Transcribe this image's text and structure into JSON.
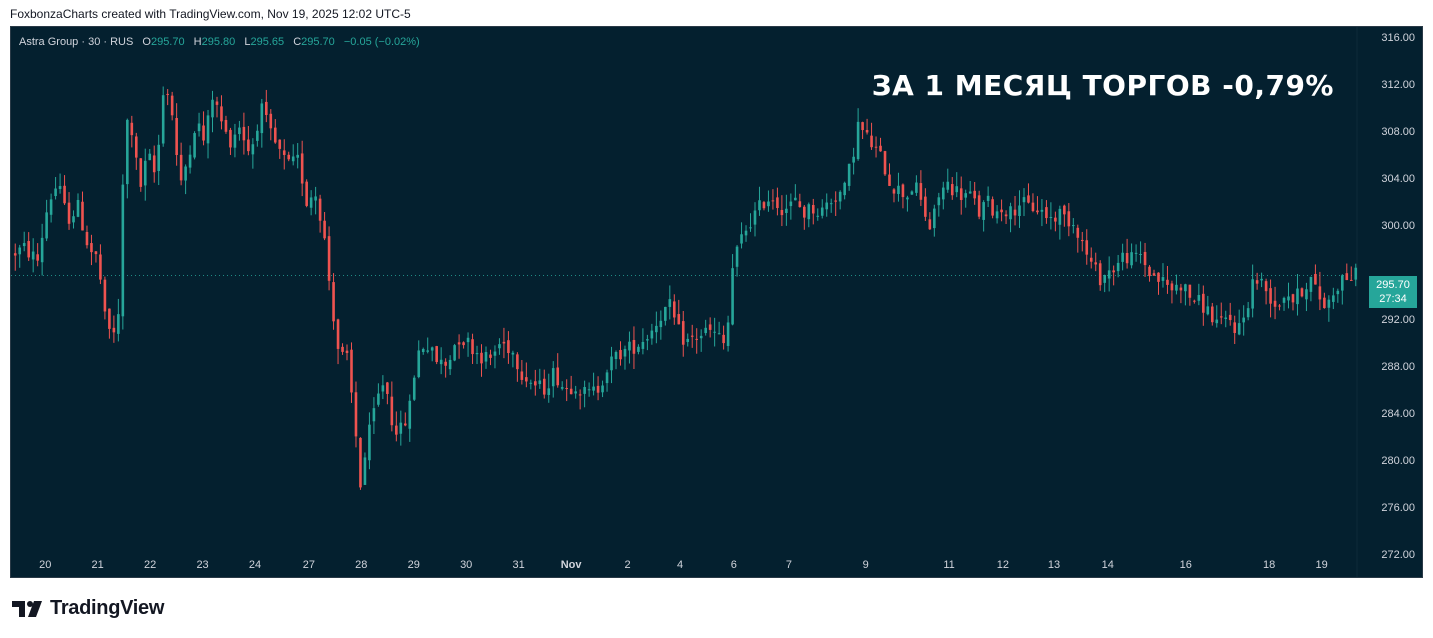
{
  "header": {
    "caption": "FoxbonzaCharts created with TradingView.com, Nov 19, 2025 12:02 UTC-5"
  },
  "legend": {
    "symbol": "Astra Group · 30 · RUS",
    "open_label": "O",
    "open": "295.70",
    "high_label": "H",
    "high": "295.80",
    "low_label": "L",
    "low": "295.65",
    "close_label": "C",
    "close": "295.70",
    "change": "−0.05 (−0.02%)"
  },
  "headline": "ЗА 1 МЕСЯЦ ТОРГОВ -0,79%",
  "price_tag": {
    "price": "295.70",
    "countdown": "27:34"
  },
  "footer": {
    "brand": "TradingView"
  },
  "colors": {
    "background": "#04202f",
    "up": "#26a69a",
    "down": "#ef5350",
    "text": "#d1d4dc"
  },
  "chart_data": {
    "type": "candlestick",
    "title": "",
    "y_ticks": [
      "316.00",
      "312.00",
      "308.00",
      "304.00",
      "300.00",
      "292.00",
      "288.00",
      "284.00",
      "280.00",
      "276.00",
      "272.00"
    ],
    "ylim": [
      272,
      316.5
    ],
    "last_price": 295.7,
    "x_ticks": [
      {
        "label": "20",
        "pos": 0.018
      },
      {
        "label": "21",
        "pos": 0.057
      },
      {
        "label": "22",
        "pos": 0.096
      },
      {
        "label": "23",
        "pos": 0.135
      },
      {
        "label": "24",
        "pos": 0.174
      },
      {
        "label": "27",
        "pos": 0.214
      },
      {
        "label": "28",
        "pos": 0.253
      },
      {
        "label": "29",
        "pos": 0.292
      },
      {
        "label": "30",
        "pos": 0.331
      },
      {
        "label": "31",
        "pos": 0.37
      },
      {
        "label": "Nov",
        "pos": 0.409
      },
      {
        "label": "2",
        "pos": 0.451
      },
      {
        "label": "4",
        "pos": 0.49
      },
      {
        "label": "6",
        "pos": 0.53
      },
      {
        "label": "7",
        "pos": 0.571
      },
      {
        "label": "9",
        "pos": 0.628
      },
      {
        "label": "11",
        "pos": 0.69
      },
      {
        "label": "12",
        "pos": 0.73
      },
      {
        "label": "13",
        "pos": 0.768
      },
      {
        "label": "14",
        "pos": 0.808
      },
      {
        "label": "16",
        "pos": 0.866
      },
      {
        "label": "18",
        "pos": 0.928
      },
      {
        "label": "19",
        "pos": 0.967
      }
    ],
    "price_path": [
      [
        0.0,
        297.5
      ],
      [
        0.01,
        298.0
      ],
      [
        0.02,
        297.0
      ],
      [
        0.028,
        302.0
      ],
      [
        0.035,
        303.5
      ],
      [
        0.042,
        300.5
      ],
      [
        0.05,
        301.5
      ],
      [
        0.058,
        298.0
      ],
      [
        0.065,
        297.0
      ],
      [
        0.07,
        292.0
      ],
      [
        0.075,
        290.5
      ],
      [
        0.08,
        292.0
      ],
      [
        0.085,
        309.0
      ],
      [
        0.09,
        308.0
      ],
      [
        0.096,
        303.0
      ],
      [
        0.102,
        306.0
      ],
      [
        0.108,
        304.0
      ],
      [
        0.114,
        312.5
      ],
      [
        0.12,
        309.5
      ],
      [
        0.126,
        303.0
      ],
      [
        0.132,
        306.0
      ],
      [
        0.138,
        309.0
      ],
      [
        0.144,
        307.0
      ],
      [
        0.15,
        311.0
      ],
      [
        0.156,
        309.0
      ],
      [
        0.162,
        307.0
      ],
      [
        0.17,
        308.5
      ],
      [
        0.178,
        306.0
      ],
      [
        0.186,
        310.0
      ],
      [
        0.192,
        308.0
      ],
      [
        0.198,
        306.5
      ],
      [
        0.206,
        305.0
      ],
      [
        0.214,
        305.5
      ],
      [
        0.22,
        302.0
      ],
      [
        0.226,
        303.0
      ],
      [
        0.232,
        300.0
      ],
      [
        0.238,
        294.0
      ],
      [
        0.244,
        289.0
      ],
      [
        0.25,
        288.5
      ],
      [
        0.255,
        284.0
      ],
      [
        0.26,
        278.0
      ],
      [
        0.266,
        282.0
      ],
      [
        0.272,
        285.0
      ],
      [
        0.278,
        287.0
      ],
      [
        0.284,
        283.0
      ],
      [
        0.29,
        282.5
      ],
      [
        0.296,
        284.0
      ],
      [
        0.302,
        289.0
      ],
      [
        0.308,
        290.0
      ],
      [
        0.316,
        288.5
      ],
      [
        0.324,
        288.0
      ],
      [
        0.332,
        290.5
      ],
      [
        0.34,
        290.0
      ],
      [
        0.348,
        289.0
      ],
      [
        0.356,
        288.5
      ],
      [
        0.364,
        290.0
      ],
      [
        0.372,
        289.5
      ],
      [
        0.38,
        287.5
      ],
      [
        0.388,
        286.5
      ],
      [
        0.396,
        286.0
      ],
      [
        0.404,
        287.5
      ],
      [
        0.412,
        286.0
      ],
      [
        0.42,
        286.5
      ],
      [
        0.428,
        285.5
      ],
      [
        0.436,
        286.0
      ],
      [
        0.444,
        288.0
      ],
      [
        0.452,
        289.0
      ],
      [
        0.46,
        289.5
      ],
      [
        0.468,
        290.0
      ],
      [
        0.476,
        291.0
      ],
      [
        0.484,
        292.5
      ],
      [
        0.49,
        293.0
      ],
      [
        0.496,
        291.0
      ],
      [
        0.502,
        290.0
      ],
      [
        0.51,
        290.5
      ],
      [
        0.518,
        291.0
      ],
      [
        0.526,
        290.5
      ],
      [
        0.532,
        289.5
      ],
      [
        0.536,
        296.0
      ],
      [
        0.542,
        298.5
      ],
      [
        0.548,
        300.0
      ],
      [
        0.554,
        301.0
      ],
      [
        0.56,
        302.0
      ],
      [
        0.566,
        302.5
      ],
      [
        0.572,
        301.5
      ],
      [
        0.578,
        301.5
      ],
      [
        0.584,
        302.0
      ],
      [
        0.59,
        301.0
      ],
      [
        0.596,
        301.5
      ],
      [
        0.602,
        301.0
      ],
      [
        0.608,
        302.0
      ],
      [
        0.614,
        302.5
      ],
      [
        0.62,
        303.0
      ],
      [
        0.626,
        306.0
      ],
      [
        0.63,
        308.5
      ],
      [
        0.636,
        307.5
      ],
      [
        0.642,
        306.5
      ],
      [
        0.648,
        305.5
      ],
      [
        0.654,
        303.5
      ],
      [
        0.66,
        303.0
      ],
      [
        0.666,
        302.5
      ],
      [
        0.672,
        303.5
      ],
      [
        0.678,
        301.5
      ],
      [
        0.684,
        299.5
      ],
      [
        0.69,
        302.5
      ],
      [
        0.696,
        303.5
      ],
      [
        0.702,
        303.0
      ],
      [
        0.708,
        302.5
      ],
      [
        0.714,
        302.5
      ],
      [
        0.72,
        301.0
      ],
      [
        0.726,
        302.0
      ],
      [
        0.732,
        301.0
      ],
      [
        0.738,
        301.5
      ],
      [
        0.744,
        301.0
      ],
      [
        0.75,
        302.0
      ],
      [
        0.756,
        301.5
      ],
      [
        0.762,
        301.5
      ],
      [
        0.768,
        301.0
      ],
      [
        0.774,
        300.5
      ],
      [
        0.78,
        301.0
      ],
      [
        0.786,
        300.5
      ],
      [
        0.792,
        300.0
      ],
      [
        0.798,
        298.0
      ],
      [
        0.804,
        296.5
      ],
      [
        0.81,
        295.5
      ],
      [
        0.816,
        296.0
      ],
      [
        0.822,
        296.5
      ],
      [
        0.828,
        297.5
      ],
      [
        0.834,
        297.0
      ],
      [
        0.84,
        297.5
      ],
      [
        0.846,
        296.0
      ],
      [
        0.852,
        295.5
      ],
      [
        0.858,
        295.0
      ],
      [
        0.864,
        294.5
      ],
      [
        0.87,
        295.0
      ],
      [
        0.876,
        294.0
      ],
      [
        0.882,
        293.5
      ],
      [
        0.888,
        293.0
      ],
      [
        0.894,
        292.0
      ],
      [
        0.9,
        291.5
      ],
      [
        0.906,
        292.0
      ],
      [
        0.912,
        291.0
      ],
      [
        0.918,
        292.5
      ],
      [
        0.924,
        295.5
      ],
      [
        0.93,
        295.0
      ],
      [
        0.936,
        294.0
      ],
      [
        0.942,
        293.0
      ],
      [
        0.948,
        294.5
      ],
      [
        0.954,
        293.5
      ],
      [
        0.96,
        294.5
      ],
      [
        0.966,
        295.5
      ],
      [
        0.972,
        294.0
      ],
      [
        0.978,
        293.0
      ],
      [
        0.984,
        294.5
      ],
      [
        0.99,
        295.5
      ],
      [
        1.0,
        295.7
      ]
    ]
  }
}
